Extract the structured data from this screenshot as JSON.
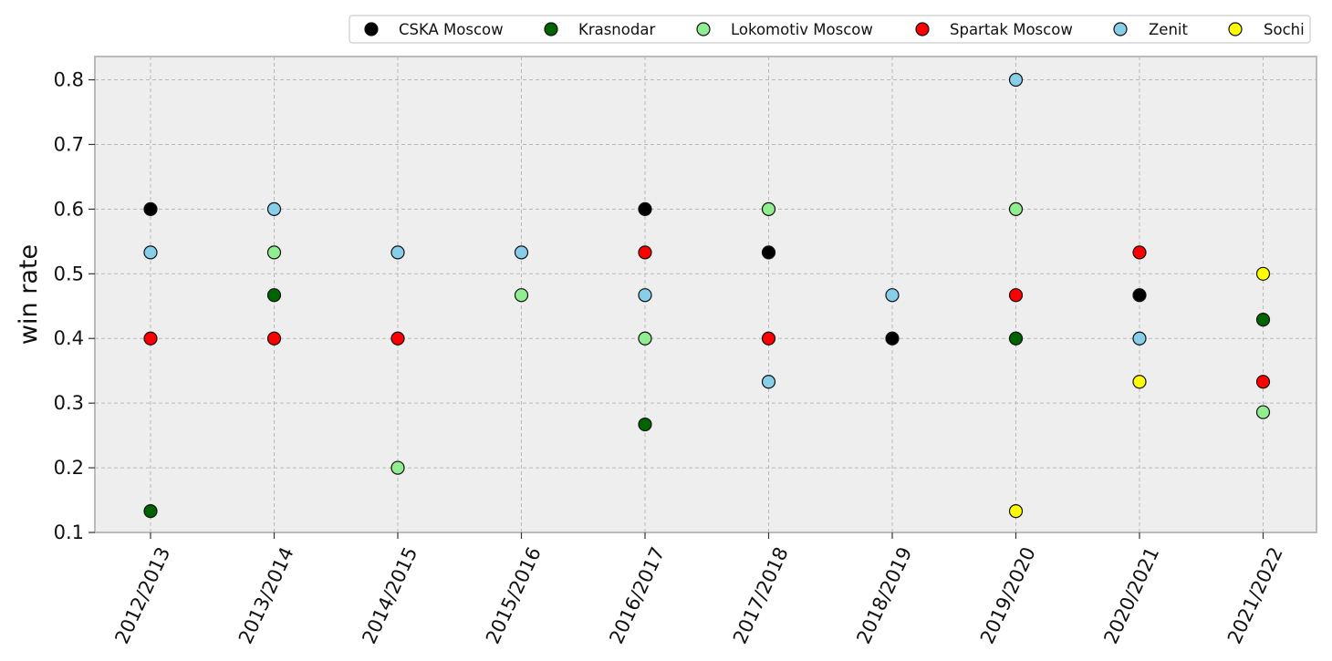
{
  "chart_data": {
    "type": "scatter",
    "title": "",
    "xlabel": "",
    "ylabel": "win rate",
    "categories": [
      "2012/2013",
      "2013/2014",
      "2014/2015",
      "2015/2016",
      "2016/2017",
      "2017/2018",
      "2018/2019",
      "2019/2020",
      "2020/2021",
      "2021/2022"
    ],
    "yticks": [
      "0.1",
      "0.2",
      "0.3",
      "0.4",
      "0.5",
      "0.6",
      "0.7",
      "0.8"
    ],
    "ylim": [
      0.1,
      0.836
    ],
    "grid": true,
    "legend_position": "top-right",
    "series": [
      {
        "name": "CSKA Moscow",
        "color": "#000000",
        "values": [
          0.6,
          null,
          null,
          null,
          0.6,
          0.533,
          0.4,
          null,
          0.467,
          null
        ]
      },
      {
        "name": "Krasnodar",
        "color": "#006400",
        "values": [
          0.133,
          0.467,
          null,
          null,
          0.267,
          null,
          null,
          0.4,
          null,
          0.429
        ]
      },
      {
        "name": "Lokomotiv Moscow",
        "color": "#90ee90",
        "values": [
          null,
          0.533,
          0.2,
          0.467,
          0.4,
          0.6,
          null,
          0.6,
          null,
          0.286
        ]
      },
      {
        "name": "Spartak Moscow",
        "color": "#ff0000",
        "values": [
          0.4,
          0.4,
          0.4,
          null,
          0.533,
          0.4,
          null,
          0.467,
          0.533,
          0.333
        ]
      },
      {
        "name": "Zenit",
        "color": "#87ceeb",
        "values": [
          0.533,
          0.6,
          0.533,
          0.533,
          0.467,
          0.333,
          0.467,
          0.8,
          0.4,
          null
        ]
      },
      {
        "name": "Sochi",
        "color": "#ffff00",
        "values": [
          null,
          null,
          null,
          null,
          null,
          null,
          null,
          0.133,
          0.333,
          0.5
        ]
      }
    ]
  }
}
